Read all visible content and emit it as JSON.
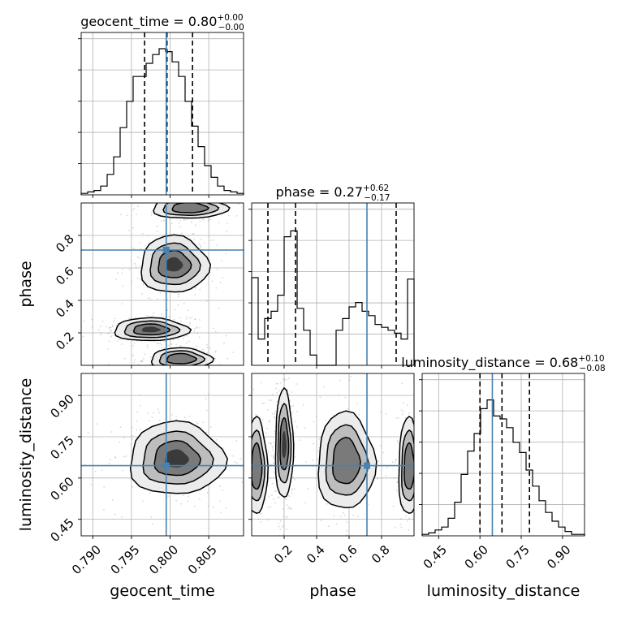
{
  "chart_data": {
    "type": "corner",
    "parameters": [
      {
        "name": "geocent_time",
        "xlabel": "geocent_time",
        "ylabel": "",
        "range": [
          0.7885,
          0.8095
        ],
        "ticks": [
          0.79,
          0.795,
          0.8,
          0.805
        ],
        "tick_labels": [
          "0.790",
          "0.795",
          "0.800",
          "0.805"
        ],
        "title": {
          "base": "geocent_time = 0.80",
          "sup": "+0.00",
          "sub": "−0.00"
        },
        "quantiles": [
          0.7967,
          0.7996,
          0.8029
        ],
        "truth": 0.7995
      },
      {
        "name": "phase",
        "xlabel": "phase",
        "ylabel": "phase",
        "range": [
          0.0,
          1.0
        ],
        "ticks": [
          0.2,
          0.4,
          0.6,
          0.8
        ],
        "tick_labels": [
          "0.2",
          "0.4",
          "0.6",
          "0.8"
        ],
        "title": {
          "base": "phase = 0.27",
          "sup": "+0.62",
          "sub": "−0.17"
        },
        "quantiles": [
          0.1,
          0.27,
          0.89
        ],
        "truth": 0.71
      },
      {
        "name": "luminosity_distance",
        "xlabel": "luminosity_distance",
        "ylabel": "luminosity_distance",
        "range": [
          0.39,
          0.98
        ],
        "ticks": [
          0.45,
          0.6,
          0.75,
          0.9
        ],
        "tick_labels": [
          "0.45",
          "0.60",
          "0.75",
          "0.90"
        ],
        "title": {
          "base": "luminosity_distance = 0.68",
          "sup": "+0.10",
          "sub": "−0.08"
        },
        "quantiles": [
          0.6,
          0.68,
          0.78
        ],
        "truth": 0.645
      }
    ],
    "histograms": {
      "geocent_time": [
        0.01,
        0.02,
        0.03,
        0.06,
        0.14,
        0.26,
        0.46,
        0.64,
        0.81,
        0.81,
        0.9,
        0.96,
        1.0,
        0.98,
        0.91,
        0.81,
        0.64,
        0.47,
        0.33,
        0.2,
        0.12,
        0.06,
        0.03,
        0.02,
        0.01
      ],
      "phase": [
        0.6,
        0.18,
        0.32,
        0.37,
        0.48,
        0.88,
        0.92,
        0.39,
        0.24,
        0.07,
        0.0,
        0.0,
        0.0,
        0.24,
        0.32,
        0.4,
        0.43,
        0.37,
        0.34,
        0.28,
        0.26,
        0.24,
        0.22,
        0.18,
        0.59
      ],
      "luminosity_distance": [
        0.01,
        0.02,
        0.04,
        0.06,
        0.12,
        0.23,
        0.42,
        0.58,
        0.7,
        0.87,
        0.93,
        0.82,
        0.8,
        0.74,
        0.64,
        0.57,
        0.45,
        0.34,
        0.24,
        0.16,
        0.1,
        0.06,
        0.03,
        0.01,
        0.01
      ]
    },
    "color_truth": "#4682b4",
    "grid": true
  }
}
